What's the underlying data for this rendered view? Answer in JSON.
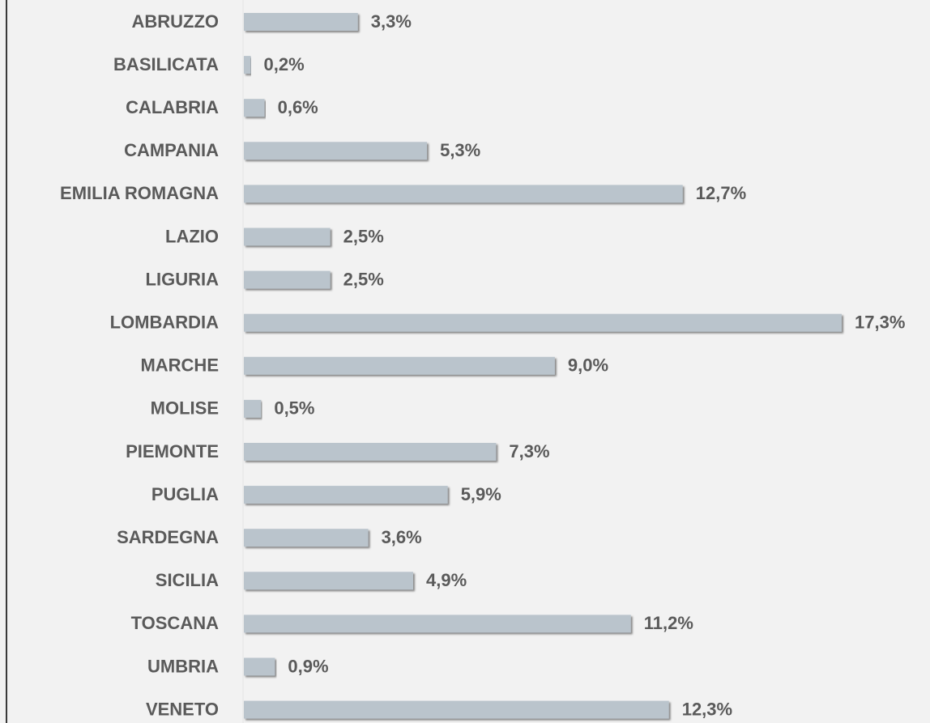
{
  "chart_data": {
    "type": "bar",
    "orientation": "horizontal",
    "categories": [
      "ABRUZZO",
      "BASILICATA",
      "CALABRIA",
      "CAMPANIA",
      "EMILIA ROMAGNA",
      "LAZIO",
      "LIGURIA",
      "LOMBARDIA",
      "MARCHE",
      "MOLISE",
      "PIEMONTE",
      "PUGLIA",
      "SARDEGNA",
      "SICILIA",
      "TOSCANA",
      "UMBRIA",
      "VENETO"
    ],
    "values": [
      3.3,
      0.2,
      0.6,
      5.3,
      12.7,
      2.5,
      2.5,
      17.3,
      9.0,
      0.5,
      7.3,
      5.9,
      3.6,
      4.9,
      11.2,
      0.9,
      12.3
    ],
    "value_labels": [
      "3,3%",
      "0,2%",
      "0,6%",
      "5,3%",
      "12,7%",
      "2,5%",
      "2,5%",
      "17,3%",
      "9,0%",
      "0,5%",
      "7,3%",
      "5,9%",
      "3,6%",
      "4,9%",
      "11,2%",
      "0,9%",
      "12,3%"
    ],
    "color": "#bac4cc"
  }
}
